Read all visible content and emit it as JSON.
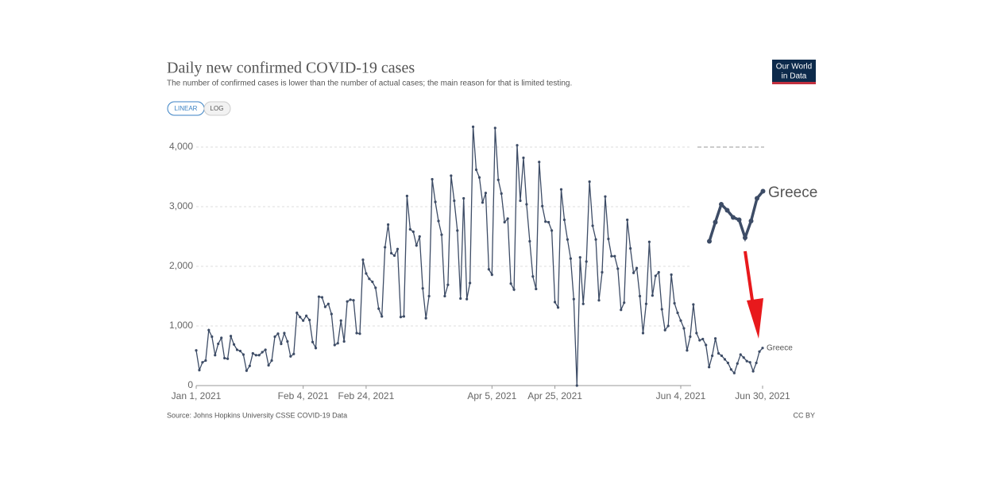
{
  "chart_data": {
    "type": "line",
    "title": "Daily new confirmed COVID-19 cases",
    "subtitle": "The number of confirmed cases is lower than the number of actual cases; the main reason for that is limited testing.",
    "buttons": [
      "LINEAR",
      "LOG"
    ],
    "logo_lines": [
      "Our World",
      "in Data"
    ],
    "source": "Source: Johns Hopkins University CSSE COVID-19 Data",
    "license": "CC BY",
    "x": [
      "2021-01-01",
      "2021-01-02",
      "2021-01-03",
      "2021-01-04",
      "2021-01-05",
      "2021-01-06",
      "2021-01-07",
      "2021-01-08",
      "2021-01-09",
      "2021-01-10",
      "2021-01-11",
      "2021-01-12",
      "2021-01-13",
      "2021-01-14",
      "2021-01-15",
      "2021-01-16",
      "2021-01-17",
      "2021-01-18",
      "2021-01-19",
      "2021-01-20",
      "2021-01-21",
      "2021-01-22",
      "2021-01-23",
      "2021-01-24",
      "2021-01-25",
      "2021-01-26",
      "2021-01-27",
      "2021-01-28",
      "2021-01-29",
      "2021-01-30",
      "2021-01-31",
      "2021-02-01",
      "2021-02-02",
      "2021-02-03",
      "2021-02-04",
      "2021-02-05",
      "2021-02-06",
      "2021-02-07",
      "2021-02-08",
      "2021-02-09",
      "2021-02-10",
      "2021-02-11",
      "2021-02-12",
      "2021-02-13",
      "2021-02-14",
      "2021-02-15",
      "2021-02-16",
      "2021-02-17",
      "2021-02-18",
      "2021-02-19",
      "2021-02-20",
      "2021-02-21",
      "2021-02-22",
      "2021-02-23",
      "2021-02-24",
      "2021-02-25",
      "2021-02-26",
      "2021-02-27",
      "2021-02-28",
      "2021-03-01",
      "2021-03-02",
      "2021-03-03",
      "2021-03-04",
      "2021-03-05",
      "2021-03-06",
      "2021-03-07",
      "2021-03-08",
      "2021-03-09",
      "2021-03-10",
      "2021-03-11",
      "2021-03-12",
      "2021-03-13",
      "2021-03-14",
      "2021-03-15",
      "2021-03-16",
      "2021-03-17",
      "2021-03-18",
      "2021-03-19",
      "2021-03-20",
      "2021-03-21",
      "2021-03-22",
      "2021-03-23",
      "2021-03-24",
      "2021-03-25",
      "2021-03-26",
      "2021-03-27",
      "2021-03-28",
      "2021-03-29",
      "2021-03-30",
      "2021-03-31",
      "2021-04-01",
      "2021-04-02",
      "2021-04-03",
      "2021-04-04",
      "2021-04-05",
      "2021-04-06",
      "2021-04-07",
      "2021-04-08",
      "2021-04-09",
      "2021-04-10",
      "2021-04-11",
      "2021-04-12",
      "2021-04-13",
      "2021-04-14",
      "2021-04-15",
      "2021-04-16",
      "2021-04-17",
      "2021-04-18",
      "2021-04-19",
      "2021-04-20",
      "2021-04-21",
      "2021-04-22",
      "2021-04-23",
      "2021-04-24",
      "2021-04-25",
      "2021-04-26",
      "2021-04-27",
      "2021-04-28",
      "2021-04-29",
      "2021-04-30",
      "2021-05-01",
      "2021-05-02",
      "2021-05-03",
      "2021-05-04",
      "2021-05-05",
      "2021-05-06",
      "2021-05-07",
      "2021-05-08",
      "2021-05-09",
      "2021-05-10",
      "2021-05-11",
      "2021-05-12",
      "2021-05-13",
      "2021-05-14",
      "2021-05-15",
      "2021-05-16",
      "2021-05-17",
      "2021-05-18",
      "2021-05-19",
      "2021-05-20",
      "2021-05-21",
      "2021-05-22",
      "2021-05-23",
      "2021-05-24",
      "2021-05-25",
      "2021-05-26",
      "2021-05-27",
      "2021-05-28",
      "2021-05-29",
      "2021-05-30",
      "2021-05-31",
      "2021-06-01",
      "2021-06-02",
      "2021-06-03",
      "2021-06-04",
      "2021-06-05",
      "2021-06-06",
      "2021-06-07",
      "2021-06-08",
      "2021-06-09",
      "2021-06-10",
      "2021-06-11",
      "2021-06-12",
      "2021-06-13",
      "2021-06-14",
      "2021-06-15",
      "2021-06-16",
      "2021-06-17",
      "2021-06-18",
      "2021-06-19",
      "2021-06-20",
      "2021-06-21",
      "2021-06-22",
      "2021-06-23",
      "2021-06-24",
      "2021-06-25",
      "2021-06-26",
      "2021-06-27",
      "2021-06-28",
      "2021-06-29",
      "2021-06-30"
    ],
    "series": [
      {
        "name": "Greece",
        "color": "#3d4c66",
        "values": [
          590,
          260,
          390,
          420,
          930,
          820,
          510,
          700,
          800,
          460,
          450,
          830,
          690,
          600,
          580,
          520,
          250,
          330,
          540,
          510,
          510,
          560,
          600,
          340,
          420,
          820,
          870,
          700,
          880,
          740,
          490,
          530,
          1220,
          1150,
          1090,
          1170,
          1100,
          730,
          630,
          1490,
          1480,
          1320,
          1370,
          1200,
          680,
          710,
          1090,
          740,
          1410,
          1440,
          1430,
          880,
          870,
          2110,
          1880,
          1790,
          1740,
          1640,
          1290,
          1160,
          2320,
          2700,
          2220,
          2180,
          2290,
          1150,
          1160,
          3180,
          2620,
          2580,
          2350,
          2500,
          1630,
          1130,
          1500,
          3460,
          3080,
          2760,
          2530,
          1500,
          1690,
          3520,
          3100,
          2600,
          1460,
          3140,
          1450,
          1720,
          4340,
          3620,
          3490,
          3070,
          3230,
          1950,
          1860,
          4320,
          3450,
          3220,
          2740,
          2800,
          1710,
          1610,
          4030,
          3100,
          3820,
          3040,
          2420,
          1830,
          1620,
          3750,
          3010,
          2750,
          2740,
          2600,
          1400,
          1310,
          3290,
          2780,
          2450,
          2130,
          1450,
          0,
          2150,
          1370,
          2080,
          3420,
          2680,
          2450,
          1430,
          1900,
          3170,
          2460,
          2170,
          2170,
          1960,
          1270,
          1390,
          2780,
          2300,
          1890,
          1970,
          1500,
          880,
          1370,
          2410,
          1510,
          1840,
          1900,
          1280,
          930,
          1000,
          1860,
          1380,
          1220,
          1090,
          960,
          590,
          820,
          1360,
          880,
          760,
          780,
          680,
          310,
          500,
          790,
          540,
          500,
          440,
          380,
          270,
          210,
          370,
          520,
          470,
          410,
          390,
          240,
          380,
          570,
          630
        ]
      }
    ],
    "xlim": [
      "2021-01-01",
      "2021-06-30"
    ],
    "xticks": [
      {
        "value": "2021-01-01",
        "label": "Jan 1, 2021"
      },
      {
        "value": "2021-02-04",
        "label": "Feb 4, 2021"
      },
      {
        "value": "2021-02-24",
        "label": "Feb 24, 2021"
      },
      {
        "value": "2021-04-05",
        "label": "Apr 5, 2021"
      },
      {
        "value": "2021-04-25",
        "label": "Apr 25, 2021"
      },
      {
        "value": "2021-06-04",
        "label": "Jun 4, 2021"
      },
      {
        "value": "2021-06-30",
        "label": "Jun 30, 2021"
      }
    ],
    "ylim": [
      0,
      4000
    ],
    "yticks": [
      0,
      {
        "value": 1000,
        "label": "1,000"
      },
      {
        "value": 2000,
        "label": "2,000"
      },
      {
        "value": 3000,
        "label": "3,000"
      },
      {
        "value": 4000,
        "label": "4,000"
      }
    ],
    "grid": true
  }
}
